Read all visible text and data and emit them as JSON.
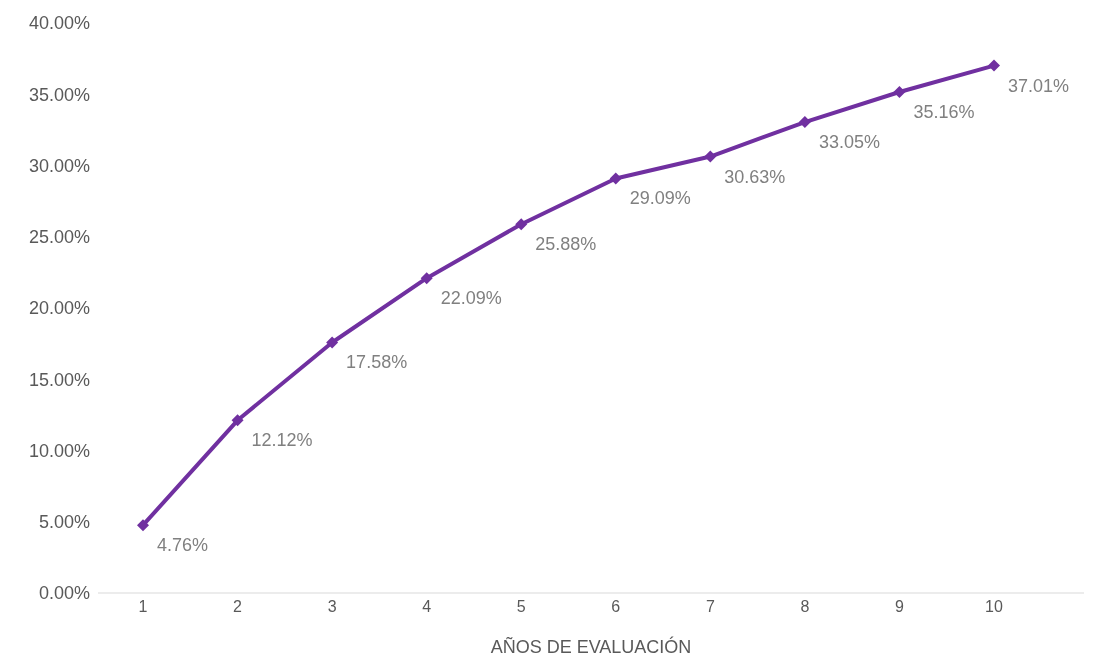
{
  "chart_data": {
    "type": "line",
    "xlabel": "AÑOS DE EVALUACIÓN",
    "categories": [
      "1",
      "2",
      "3",
      "4",
      "5",
      "6",
      "7",
      "8",
      "9",
      "10"
    ],
    "series": [
      {
        "color": "#7030a0",
        "values": [
          4.76,
          12.12,
          17.58,
          22.09,
          25.88,
          29.09,
          30.63,
          33.05,
          35.16,
          37.01
        ],
        "value_labels": [
          "4.76%",
          "12.12%",
          "17.58%",
          "22.09%",
          "25.88%",
          "29.09%",
          "30.63%",
          "33.05%",
          "35.16%",
          "37.01%"
        ]
      }
    ],
    "ylim": [
      0,
      40
    ],
    "yticks": [
      {
        "value": 0,
        "label": "0.00%"
      },
      {
        "value": 5,
        "label": "5.00%"
      },
      {
        "value": 10,
        "label": "10.00%"
      },
      {
        "value": 15,
        "label": "15.00%"
      },
      {
        "value": 20,
        "label": "20.00%"
      },
      {
        "value": 25,
        "label": "25.00%"
      },
      {
        "value": 30,
        "label": "30.00%"
      },
      {
        "value": 35,
        "label": "35.00%"
      },
      {
        "value": 40,
        "label": "40.00%"
      }
    ],
    "grid": false,
    "legend": false,
    "marker": "diamond",
    "line_style": "solid"
  }
}
